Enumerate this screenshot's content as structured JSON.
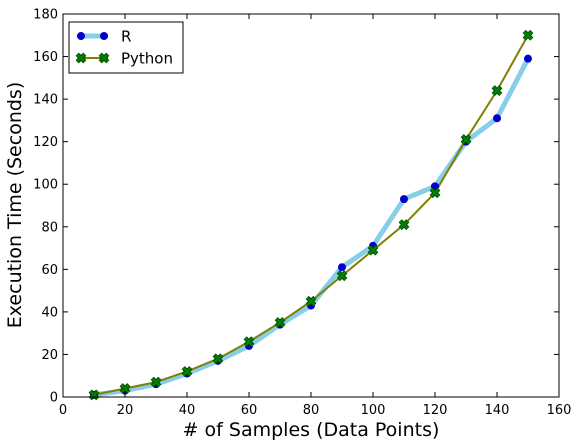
{
  "chart_data": {
    "type": "line",
    "xlabel": "# of Samples (Data Points)",
    "ylabel": "Execution Time (Seconds)",
    "xlim": [
      0,
      160
    ],
    "ylim": [
      0,
      180
    ],
    "x_ticks": [
      0,
      20,
      40,
      60,
      80,
      100,
      120,
      140,
      160
    ],
    "y_ticks": [
      0,
      20,
      40,
      60,
      80,
      100,
      120,
      140,
      160,
      180
    ],
    "grid": false,
    "legend_position": "top-left",
    "series": [
      {
        "name": "R",
        "color": "#87ceeb",
        "marker_color": "#0000cc",
        "marker": "circle",
        "x": [
          10,
          20,
          30,
          40,
          50,
          60,
          70,
          80,
          90,
          100,
          110,
          120,
          130,
          140,
          150
        ],
        "y": [
          1,
          3,
          6,
          11,
          17,
          24,
          34,
          43,
          61,
          71,
          93,
          99,
          120,
          131,
          159
        ]
      },
      {
        "name": "Python",
        "color": "#808000",
        "marker_color": "#008000",
        "marker": "x",
        "x": [
          10,
          20,
          30,
          40,
          50,
          60,
          70,
          80,
          90,
          100,
          110,
          120,
          130,
          140,
          150
        ],
        "y": [
          1,
          4,
          7,
          12,
          18,
          26,
          35,
          45,
          57,
          69,
          81,
          96,
          121,
          144,
          170
        ]
      }
    ]
  }
}
